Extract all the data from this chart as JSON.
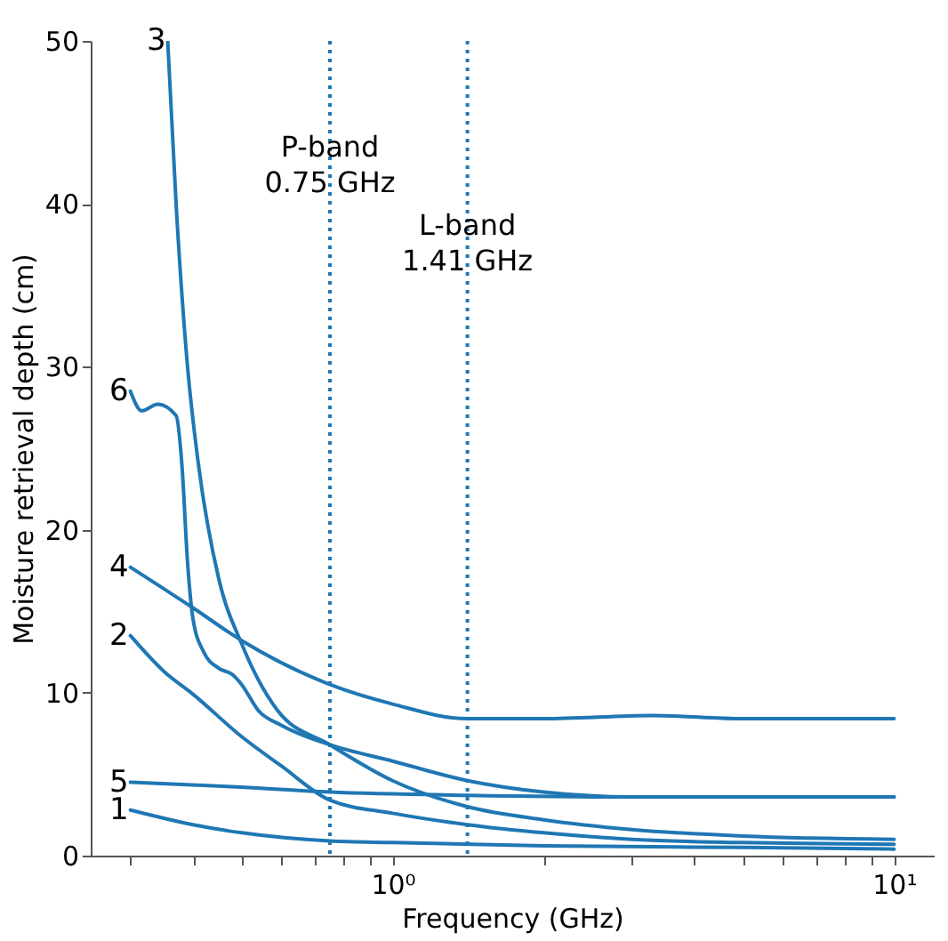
{
  "chart_data": {
    "type": "line",
    "xlabel": "Frequency (GHz)",
    "ylabel": "Moisture retrieval depth (cm)",
    "log": "x",
    "xlim": [
      0.25,
      12
    ],
    "ylim": [
      0,
      50
    ],
    "xticks": [
      {
        "value": 0.3,
        "label": null
      },
      {
        "value": 0.4,
        "label": null
      },
      {
        "value": 0.5,
        "label": null
      },
      {
        "value": 0.6,
        "label": null
      },
      {
        "value": 0.7,
        "label": null
      },
      {
        "value": 0.8,
        "label": null
      },
      {
        "value": 0.9,
        "label": null
      },
      {
        "value": 1,
        "label": "10⁰"
      },
      {
        "value": 2,
        "label": null
      },
      {
        "value": 3,
        "label": null
      },
      {
        "value": 4,
        "label": null
      },
      {
        "value": 5,
        "label": null
      },
      {
        "value": 6,
        "label": null
      },
      {
        "value": 7,
        "label": null
      },
      {
        "value": 8,
        "label": null
      },
      {
        "value": 9,
        "label": null
      },
      {
        "value": 10,
        "label": "10¹"
      }
    ],
    "yticks": [
      0,
      10,
      20,
      30,
      40,
      50
    ],
    "grid": false,
    "legend": false,
    "marker": "none",
    "line_style": "solid",
    "series": [
      {
        "name": "1",
        "color": "#1f77b4",
        "x": [
          0.3,
          0.4,
          0.5,
          0.75,
          1,
          2,
          5,
          10
        ],
        "values": [
          2.8,
          1.9,
          1.4,
          0.9,
          0.8,
          0.6,
          0.5,
          0.4
        ]
      },
      {
        "name": "2",
        "color": "#1f77b4",
        "x": [
          0.3,
          0.35,
          0.4,
          0.5,
          0.6,
          0.75,
          1,
          1.41,
          2,
          3,
          5,
          10
        ],
        "values": [
          13.5,
          11.3,
          9.9,
          7.3,
          5.5,
          3.4,
          2.6,
          1.9,
          1.4,
          1.0,
          0.8,
          0.7
        ]
      },
      {
        "name": "3",
        "color": "#1f77b4",
        "x": [
          0.356,
          0.37,
          0.39,
          0.41,
          0.45,
          0.5,
          0.59,
          0.75,
          1,
          1.41,
          2,
          3,
          5,
          10
        ],
        "values": [
          50,
          40,
          30,
          24,
          17,
          13,
          8.9,
          6.8,
          4.6,
          3.0,
          2.2,
          1.6,
          1.2,
          1.0
        ]
      },
      {
        "name": "4",
        "color": "#1f77b4",
        "x": [
          0.3,
          0.4,
          0.5,
          0.75,
          1,
          1.41,
          2,
          3.3,
          5,
          10
        ],
        "values": [
          17.7,
          15.2,
          13.2,
          10.5,
          9.3,
          8.4,
          8.4,
          8.6,
          8.4,
          8.4
        ]
      },
      {
        "name": "5",
        "color": "#1f77b4",
        "x": [
          0.3,
          0.5,
          0.75,
          1.41,
          3,
          10
        ],
        "values": [
          4.5,
          4.2,
          3.9,
          3.7,
          3.6,
          3.6
        ]
      },
      {
        "name": "6",
        "color": "#1f77b4",
        "x": [
          0.3,
          0.316,
          0.34,
          0.37,
          0.38,
          0.39,
          0.4,
          0.42,
          0.45,
          0.48,
          0.5,
          0.54,
          0.6,
          0.75,
          1,
          1.41,
          2,
          3,
          10
        ],
        "values": [
          28.5,
          27.3,
          27.7,
          27.0,
          24,
          18,
          14.5,
          12.5,
          11.5,
          11.1,
          10.5,
          8.9,
          8.0,
          6.8,
          5.8,
          4.6,
          3.9,
          3.6,
          3.6
        ]
      }
    ],
    "ref_lines": [
      {
        "axis": "x",
        "value": 0.75,
        "label": "P-band\n0.75 GHz",
        "color": "#1f77b4",
        "line_style": "dotted"
      },
      {
        "axis": "x",
        "value": 1.41,
        "label": "L-band\n1.41 GHz",
        "color": "#1f77b4",
        "line_style": "dotted"
      }
    ]
  }
}
